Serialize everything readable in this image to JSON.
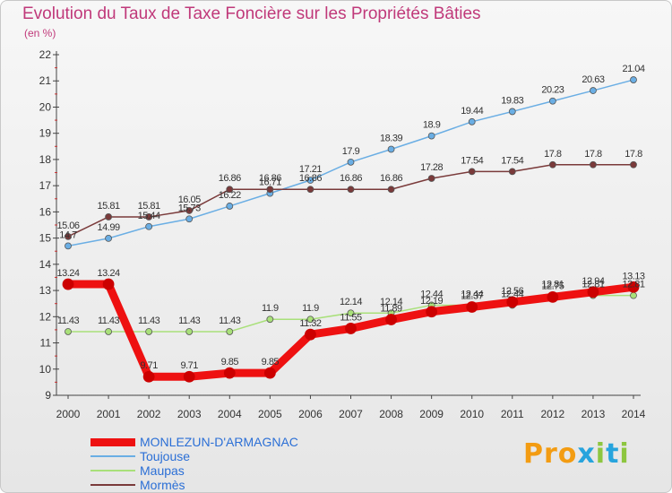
{
  "title": "Evolution du Taux de Taxe Foncière sur les Propriétés Bâties",
  "subtitle": "(en %)",
  "logo": {
    "text": "Proxiti",
    "letters": [
      "P",
      "r",
      "o",
      "x",
      "i",
      "t",
      "i"
    ],
    "colors": [
      "#f39c12",
      "#f39c12",
      "#f39c12",
      "#27a4dd",
      "#8dc63f",
      "#27a4dd",
      "#8dc63f"
    ]
  },
  "chart_data": {
    "type": "line",
    "x": [
      2000,
      2001,
      2002,
      2003,
      2004,
      2005,
      2006,
      2007,
      2008,
      2009,
      2010,
      2011,
      2012,
      2013,
      2014
    ],
    "ylim": [
      9,
      22
    ],
    "yticks": [
      9,
      10,
      11,
      12,
      13,
      14,
      15,
      16,
      17,
      18,
      19,
      20,
      21,
      22
    ],
    "xlabel": "",
    "ylabel": "(en %)",
    "grid": false,
    "legend_position": "bottom-left",
    "series": [
      {
        "name": "MONLEZUN-D'ARMAGNAC",
        "color": "#ee1111",
        "width": 9,
        "labels": true,
        "values": [
          13.24,
          13.24,
          9.71,
          9.71,
          9.85,
          9.85,
          11.32,
          11.55,
          11.89,
          12.19,
          12.37,
          12.56,
          12.75,
          12.94,
          13.13
        ]
      },
      {
        "name": "Toujouse",
        "color": "#6aaee4",
        "width": 1.5,
        "labels": true,
        "values": [
          14.7,
          14.99,
          15.44,
          15.73,
          16.22,
          16.71,
          17.21,
          17.9,
          18.39,
          18.9,
          19.44,
          19.83,
          20.23,
          20.63,
          21.04
        ]
      },
      {
        "name": "Maupas",
        "color": "#a9e07a",
        "width": 1.5,
        "labels": true,
        "values": [
          11.43,
          11.43,
          11.43,
          11.43,
          11.43,
          11.9,
          11.9,
          12.14,
          12.14,
          12.44,
          12.44,
          12.44,
          12.81,
          12.81,
          12.81
        ]
      },
      {
        "name": "Mormès",
        "color": "#7a3a3a",
        "width": 1.5,
        "labels": true,
        "values": [
          15.06,
          15.81,
          15.81,
          16.05,
          16.86,
          16.86,
          16.86,
          16.86,
          16.86,
          17.28,
          17.54,
          17.54,
          17.8,
          17.8,
          17.8
        ]
      }
    ]
  }
}
